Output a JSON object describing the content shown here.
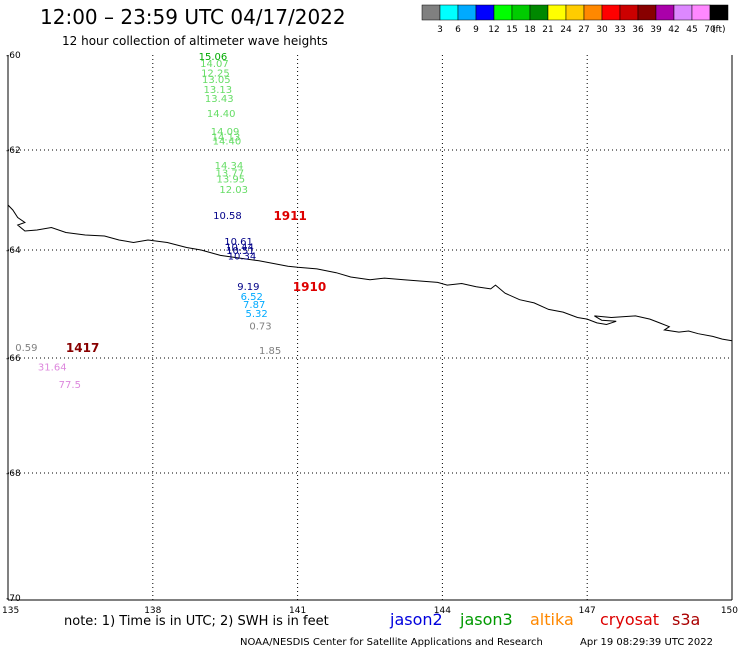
{
  "header": {
    "title": "12:00 – 23:59 UTC 04/17/2022",
    "subtitle": "12 hour collection of altimeter wave heights"
  },
  "legend": {
    "colors": [
      "#808080",
      "#00ffff",
      "#00aaff",
      "#0000ff",
      "#00ff00",
      "#00cc00",
      "#008800",
      "#ffff00",
      "#ffcc00",
      "#ff8800",
      "#ff0000",
      "#cc0000",
      "#880000",
      "#aa00aa",
      "#dd88ff",
      "#ff88ff",
      "#000000"
    ],
    "labels": [
      "3",
      "6",
      "9",
      "12",
      "15",
      "18",
      "21",
      "24",
      "27",
      "30",
      "33",
      "36",
      "39",
      "42",
      "45",
      "70"
    ],
    "unit": "(ft)"
  },
  "axes": {
    "lat_labels": [
      "-60",
      "-62",
      "-64",
      "-66",
      "-68",
      "-70"
    ],
    "lon_labels": [
      "135",
      "138",
      "141",
      "144",
      "147",
      "150"
    ]
  },
  "wave_readings": [
    {
      "text": "15.06",
      "color": "#00aa00",
      "lon": 138.95,
      "lat": -60.02
    },
    {
      "text": "14.07",
      "color": "#66dd66",
      "lon": 138.98,
      "lat": -60.17
    },
    {
      "text": "12.25",
      "color": "#66dd66",
      "lon": 139.0,
      "lat": -60.37
    },
    {
      "text": "13.05",
      "color": "#66dd66",
      "lon": 139.02,
      "lat": -60.5
    },
    {
      "text": "13.13",
      "color": "#66dd66",
      "lon": 139.05,
      "lat": -60.72
    },
    {
      "text": "13.43",
      "color": "#66dd66",
      "lon": 139.08,
      "lat": -60.9
    },
    {
      "text": "14.40",
      "color": "#66dd66",
      "lon": 139.12,
      "lat": -61.22
    },
    {
      "text": "14.09",
      "color": "#66dd66",
      "lon": 139.2,
      "lat": -61.6
    },
    {
      "text": "14.13",
      "color": "#66dd66",
      "lon": 139.22,
      "lat": -61.72
    },
    {
      "text": "14.40",
      "color": "#66dd66",
      "lon": 139.24,
      "lat": -61.8
    },
    {
      "text": "14.34",
      "color": "#66dd66",
      "lon": 139.28,
      "lat": -62.3
    },
    {
      "text": "13.77",
      "color": "#66dd66",
      "lon": 139.3,
      "lat": -62.45
    },
    {
      "text": "13.95",
      "color": "#66dd66",
      "lon": 139.32,
      "lat": -62.57
    },
    {
      "text": "12.03",
      "color": "#66dd66",
      "lon": 139.38,
      "lat": -62.78
    },
    {
      "text": "10.58",
      "color": "#000088",
      "lon": 139.25,
      "lat": -63.3
    },
    {
      "text": "10.61",
      "color": "#000088",
      "lon": 139.48,
      "lat": -63.82
    },
    {
      "text": "10.44",
      "color": "#000088",
      "lon": 139.5,
      "lat": -63.93
    },
    {
      "text": "10.51",
      "color": "#000088",
      "lon": 139.52,
      "lat": -64.0
    },
    {
      "text": "10.34",
      "color": "#000088",
      "lon": 139.55,
      "lat": -64.1
    },
    {
      "text": "9.19",
      "color": "#000088",
      "lon": 139.75,
      "lat": -64.67
    },
    {
      "text": "6.52",
      "color": "#00aaff",
      "lon": 139.82,
      "lat": -64.85
    },
    {
      "text": "7.87",
      "color": "#00aaff",
      "lon": 139.87,
      "lat": -65.0
    },
    {
      "text": "5.32",
      "color": "#00aaff",
      "lon": 139.92,
      "lat": -65.17
    },
    {
      "text": "0.73",
      "color": "#808080",
      "lon": 140.0,
      "lat": -65.4
    },
    {
      "text": "1.85",
      "color": "#808080",
      "lon": 140.2,
      "lat": -65.85
    },
    {
      "text": "0.59",
      "color": "#808080",
      "lon": 135.15,
      "lat": -65.8
    },
    {
      "text": "31.64",
      "color": "#dd88dd",
      "lon": 135.62,
      "lat": -66.15
    },
    {
      "text": "77.5",
      "color": "#dd88dd",
      "lon": 136.05,
      "lat": -66.45
    }
  ],
  "pass_labels": [
    {
      "text": "1911",
      "color": "#dd0000",
      "lon": 140.5,
      "lat": -63.3
    },
    {
      "text": "1910",
      "color": "#dd0000",
      "lon": 140.9,
      "lat": -64.67
    },
    {
      "text": "1417",
      "color": "#880000",
      "lon": 136.2,
      "lat": -65.8
    }
  ],
  "footer": {
    "note": "note:  1) Time is in UTC;  2) SWH is in feet",
    "satellites": [
      {
        "name": "jason2",
        "color": "#0000dd"
      },
      {
        "name": "jason3",
        "color": "#009900"
      },
      {
        "name": "altika",
        "color": "#ff8800"
      },
      {
        "name": "cryosat",
        "color": "#dd0000"
      },
      {
        "name": "s3a",
        "color": "#aa0000"
      }
    ],
    "credit": "NOAA/NESDIS Center for Satellite Applications and Research",
    "timestamp": "Apr 19 08:29:39 UTC 2022"
  },
  "coastline": [
    [
      135.0,
      -63.1
    ],
    [
      135.1,
      -63.2
    ],
    [
      135.2,
      -63.35
    ],
    [
      135.35,
      -63.45
    ],
    [
      135.2,
      -63.5
    ],
    [
      135.35,
      -63.62
    ],
    [
      135.6,
      -63.6
    ],
    [
      135.9,
      -63.55
    ],
    [
      136.2,
      -63.65
    ],
    [
      136.6,
      -63.7
    ],
    [
      137.0,
      -63.72
    ],
    [
      137.3,
      -63.8
    ],
    [
      137.6,
      -63.85
    ],
    [
      137.9,
      -63.8
    ],
    [
      138.3,
      -63.85
    ],
    [
      138.7,
      -63.95
    ],
    [
      139.0,
      -64.0
    ],
    [
      139.4,
      -64.1
    ],
    [
      139.8,
      -64.15
    ],
    [
      140.2,
      -64.2
    ],
    [
      140.5,
      -64.25
    ],
    [
      140.8,
      -64.3
    ],
    [
      141.0,
      -64.32
    ],
    [
      141.4,
      -64.35
    ],
    [
      141.8,
      -64.42
    ],
    [
      142.1,
      -64.5
    ],
    [
      142.5,
      -64.55
    ],
    [
      142.8,
      -64.52
    ],
    [
      143.2,
      -64.55
    ],
    [
      143.6,
      -64.58
    ],
    [
      143.9,
      -64.6
    ],
    [
      144.1,
      -64.65
    ],
    [
      144.4,
      -64.62
    ],
    [
      144.7,
      -64.68
    ],
    [
      145.0,
      -64.72
    ],
    [
      145.1,
      -64.65
    ],
    [
      145.3,
      -64.8
    ],
    [
      145.6,
      -64.92
    ],
    [
      145.9,
      -64.98
    ],
    [
      146.2,
      -65.1
    ],
    [
      146.5,
      -65.15
    ],
    [
      146.8,
      -65.25
    ],
    [
      147.0,
      -65.28
    ],
    [
      147.2,
      -65.35
    ],
    [
      147.4,
      -65.38
    ],
    [
      147.6,
      -65.32
    ],
    [
      147.3,
      -65.3
    ],
    [
      147.15,
      -65.22
    ],
    [
      147.5,
      -65.25
    ],
    [
      148.0,
      -65.22
    ],
    [
      148.3,
      -65.28
    ],
    [
      148.5,
      -65.35
    ],
    [
      148.7,
      -65.42
    ],
    [
      148.6,
      -65.48
    ],
    [
      148.9,
      -65.52
    ],
    [
      149.1,
      -65.5
    ],
    [
      149.3,
      -65.55
    ],
    [
      149.6,
      -65.6
    ],
    [
      149.8,
      -65.65
    ],
    [
      150.0,
      -65.68
    ]
  ]
}
